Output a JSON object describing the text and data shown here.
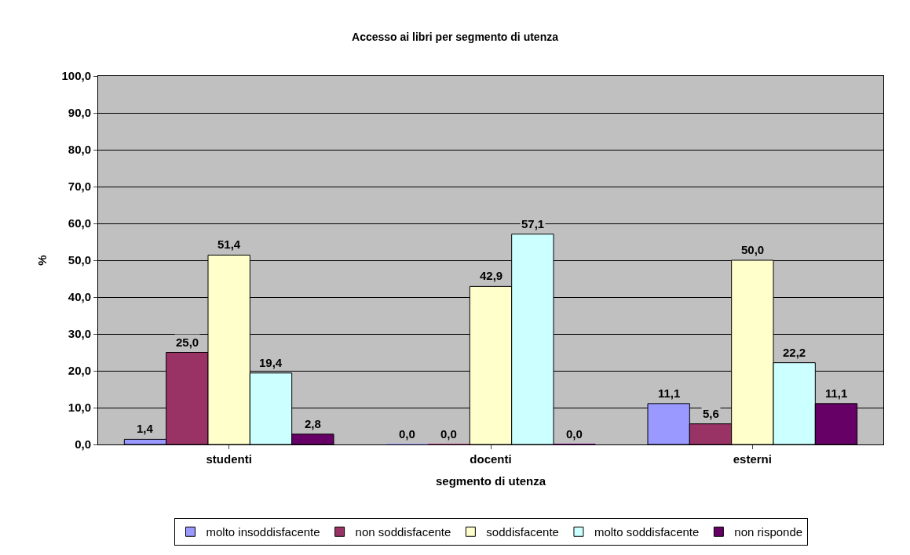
{
  "chart_data": {
    "type": "bar",
    "title": "Accesso ai libri per segmento di utenza",
    "xlabel": "segmento di utenza",
    "ylabel": "%",
    "categories": [
      "studenti",
      "docenti",
      "esterni"
    ],
    "series": [
      {
        "name": "molto insoddisfacente",
        "color": "#9999ff",
        "values": [
          1.4,
          0.0,
          11.1
        ],
        "value_labels": [
          "1,4",
          "0,0",
          "11,1"
        ]
      },
      {
        "name": "non soddisfacente",
        "color": "#993366",
        "values": [
          25.0,
          0.0,
          5.6
        ],
        "value_labels": [
          "25,0",
          "0,0",
          "5,6"
        ]
      },
      {
        "name": "soddisfacente",
        "color": "#ffffcc",
        "values": [
          51.4,
          42.9,
          50.0
        ],
        "value_labels": [
          "51,4",
          "42,9",
          "50,0"
        ]
      },
      {
        "name": "molto soddisfacente",
        "color": "#ccffff",
        "values": [
          19.4,
          57.1,
          22.2
        ],
        "value_labels": [
          "19,4",
          "57,1",
          "22,2"
        ]
      },
      {
        "name": "non risponde",
        "color": "#660066",
        "values": [
          2.8,
          0.0,
          11.1
        ],
        "value_labels": [
          "2,8",
          "0,0",
          "11,1"
        ]
      }
    ],
    "ylim": [
      0,
      100
    ],
    "yticks": [
      {
        "value": 0,
        "label": "0,0"
      },
      {
        "value": 10,
        "label": "10,0"
      },
      {
        "value": 20,
        "label": "20,0"
      },
      {
        "value": 30,
        "label": "30,0"
      },
      {
        "value": 40,
        "label": "40,0"
      },
      {
        "value": 50,
        "label": "50,0"
      },
      {
        "value": 60,
        "label": "60,0"
      },
      {
        "value": 70,
        "label": "70,0"
      },
      {
        "value": 80,
        "label": "80,0"
      },
      {
        "value": 90,
        "label": "90,0"
      },
      {
        "value": 100,
        "label": "100,0"
      }
    ],
    "grid": "y",
    "legend": "bottom"
  }
}
